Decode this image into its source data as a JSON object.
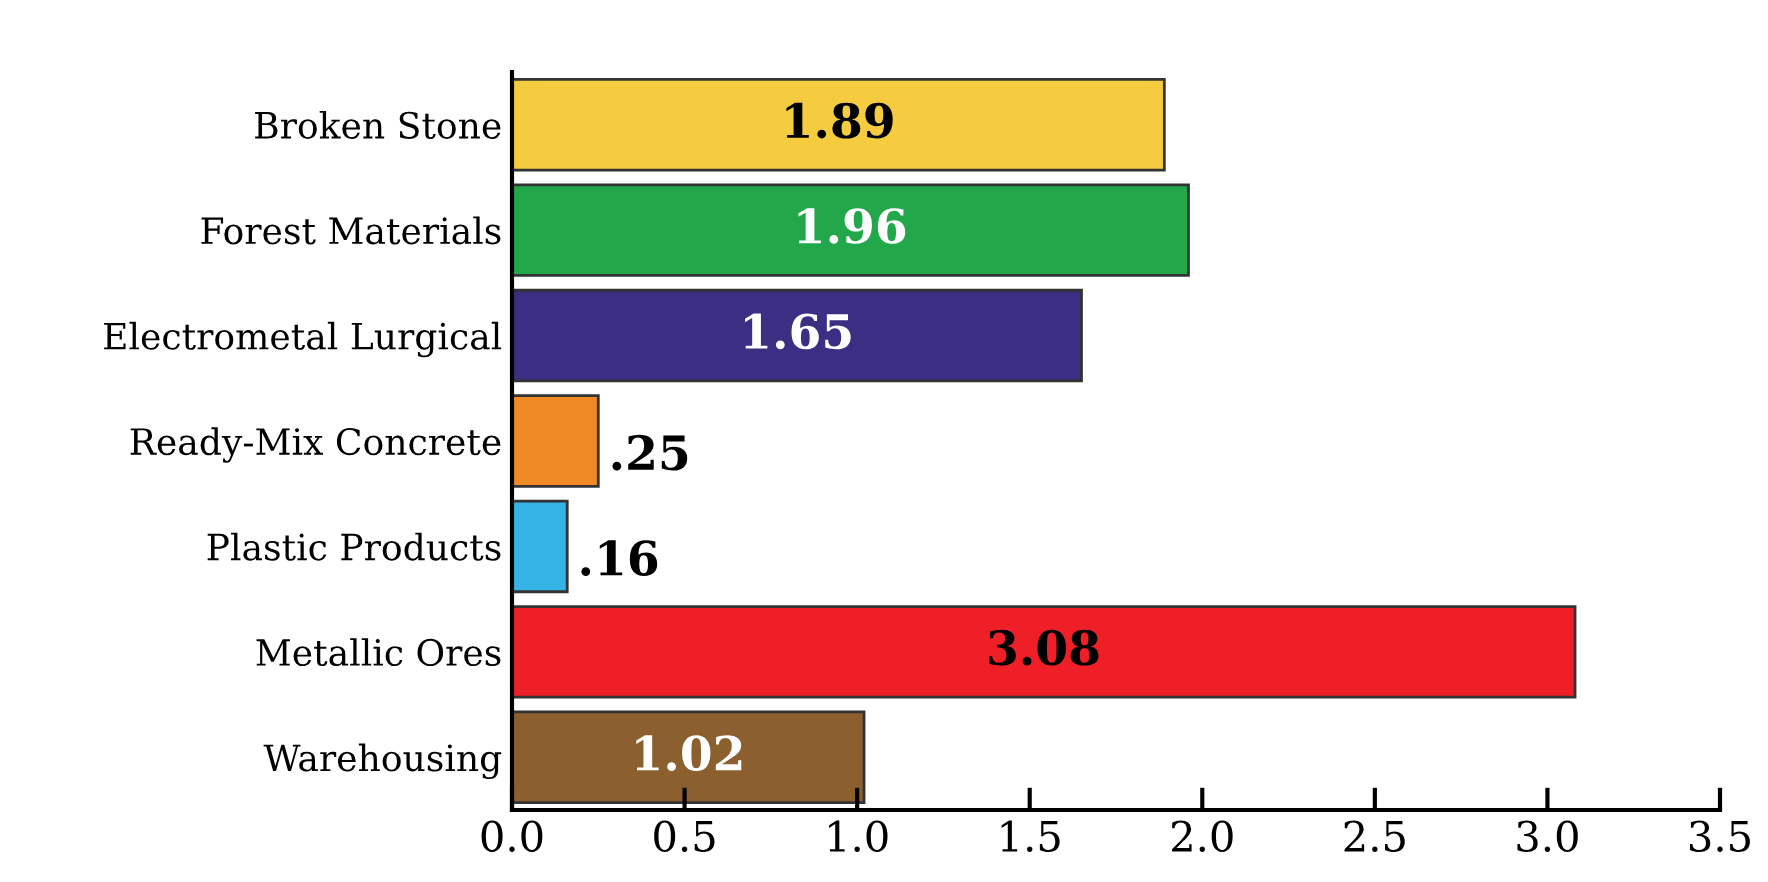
{
  "chart_data": {
    "type": "bar",
    "orientation": "horizontal",
    "categories": [
      "Broken Stone",
      "Forest Materials",
      "Electrometal Lurgical",
      "Ready-Mix Concrete",
      "Plastic Products",
      "Metallic Ores",
      "Warehousing"
    ],
    "values": [
      1.89,
      1.96,
      1.65,
      0.25,
      0.16,
      3.08,
      1.02
    ],
    "colors": [
      "#f5cc3f",
      "#22a84a",
      "#3b2e83",
      "#ef8a25",
      "#35b2e6",
      "#ee1f26",
      "#8c5f2e"
    ],
    "value_labels": [
      "1.89",
      "1.96",
      "1.65",
      ".25",
      ".16",
      "3.08",
      "1.02"
    ],
    "xlim": [
      0,
      3.5
    ],
    "xticks": [
      {
        "value": 0,
        "label": "0.0"
      },
      {
        "value": 0.5,
        "label": "0.5"
      },
      {
        "value": 1,
        "label": "1.0"
      },
      {
        "value": 1.5,
        "label": "1.5"
      },
      {
        "value": 2,
        "label": "2.0"
      },
      {
        "value": 2.5,
        "label": "2.5"
      },
      {
        "value": 3,
        "label": "3.0"
      },
      {
        "value": 3.5,
        "label": "3.5"
      }
    ],
    "grid": false,
    "legend": false
  }
}
